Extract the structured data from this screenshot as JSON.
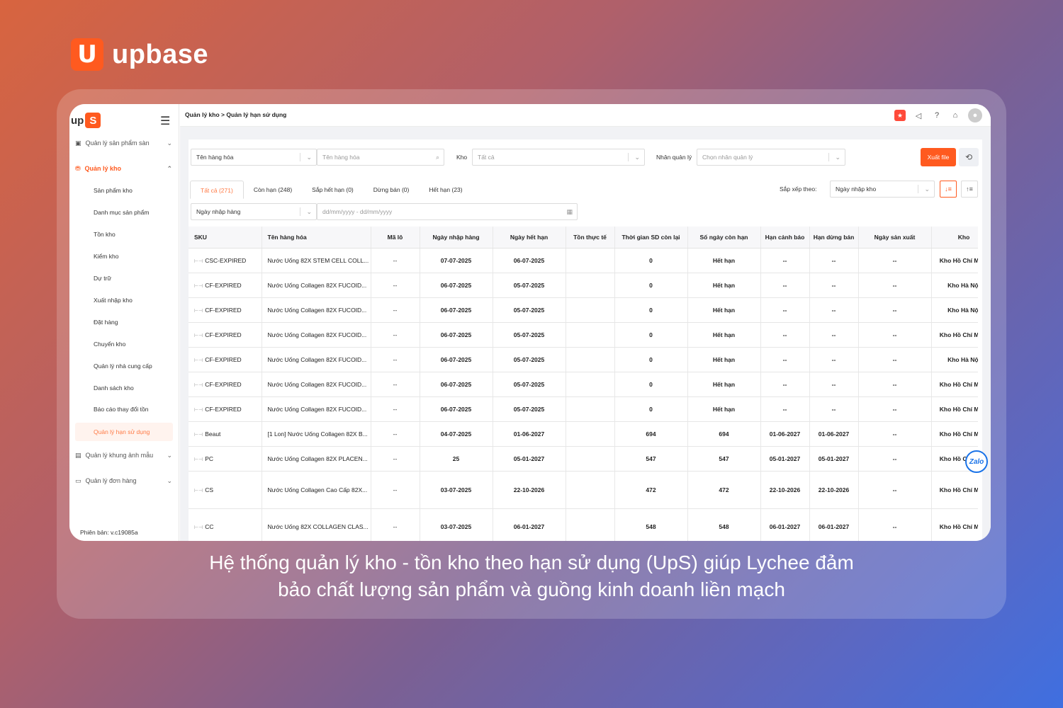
{
  "brand": {
    "mark": "U",
    "name": "upbase"
  },
  "caption": {
    "line1": "Hệ thống quản lý kho - tồn kho theo hạn sử dụng (UpS) giúp Lychee đảm",
    "line2": "bảo chất lượng sản phẩm và guồng kinh doanh liền mạch"
  },
  "sidebar": {
    "logo_text": "up",
    "logo_mark": "S",
    "groups": [
      {
        "label": "Quản lý sản phẩm sàn"
      },
      {
        "label": "Quản lý kho"
      },
      {
        "label": "Quản lý khung ảnh mẫu"
      },
      {
        "label": "Quản lý đơn hàng"
      }
    ],
    "items": [
      {
        "label": "Sản phẩm kho"
      },
      {
        "label": "Danh mục sản phẩm"
      },
      {
        "label": "Tồn kho"
      },
      {
        "label": "Kiểm kho"
      },
      {
        "label": "Dự trữ"
      },
      {
        "label": "Xuất nhập kho"
      },
      {
        "label": "Đặt hàng"
      },
      {
        "label": "Chuyển kho"
      },
      {
        "label": "Quản lý nhà cung cấp"
      },
      {
        "label": "Danh sách kho"
      },
      {
        "label": "Báo cáo thay đổi tồn"
      },
      {
        "label": "Quản lý hạn sử dụng"
      }
    ],
    "version": "Phiên bản: v.c19085a"
  },
  "topbar": {
    "breadcrumb": "Quản lý kho  >  Quản lý hạn sử dụng"
  },
  "filters": {
    "product_select": "Tên hàng hóa",
    "product_search_placeholder": "Tên hàng hóa",
    "warehouse_label": "Kho",
    "warehouse_value": "Tất cả",
    "staff_label": "Nhân quản lý",
    "staff_placeholder": "Chọn nhân quản lý",
    "export_label": "Xuất file",
    "date_type": "Ngày nhập hàng",
    "date_placeholder": "dd/mm/yyyy - dd/mm/yyyy",
    "sort_label": "Sắp xếp theo:",
    "sort_value": "Ngày nhập kho"
  },
  "tabs": [
    {
      "label": "Tất cả (271)"
    },
    {
      "label": "Còn hạn (248)"
    },
    {
      "label": "Sắp hết hạn (0)"
    },
    {
      "label": "Dừng bán (0)"
    },
    {
      "label": "Hết hạn (23)"
    }
  ],
  "table": {
    "columns": [
      "SKU",
      "Tên hàng hóa",
      "Mã lô",
      "Ngày nhập hàng",
      "Ngày hết hạn",
      "Tồn thực tế",
      "Thời gian SD còn lại",
      "Số ngày còn hạn",
      "Hạn cảnh báo",
      "Hạn dừng bán",
      "Ngày sản xuất",
      "Kho"
    ],
    "rows": [
      [
        "CSC-EXPIRED",
        "Nước Uống 82X STEM CELL COLL...",
        "--",
        "07-07-2025",
        "06-07-2025",
        "",
        "0",
        "Hết hạn",
        "--",
        "--",
        "--",
        "Kho Hồ Chí Minh"
      ],
      [
        "CF-EXPIRED",
        "Nước Uống Collagen 82X FUCOID...",
        "--",
        "06-07-2025",
        "05-07-2025",
        "",
        "0",
        "Hết hạn",
        "--",
        "--",
        "--",
        "Kho Hà Nội"
      ],
      [
        "CF-EXPIRED",
        "Nước Uống Collagen 82X FUCOID...",
        "--",
        "06-07-2025",
        "05-07-2025",
        "",
        "0",
        "Hết hạn",
        "--",
        "--",
        "--",
        "Kho Hà Nội"
      ],
      [
        "CF-EXPIRED",
        "Nước Uống Collagen 82X FUCOID...",
        "--",
        "06-07-2025",
        "05-07-2025",
        "",
        "0",
        "Hết hạn",
        "--",
        "--",
        "--",
        "Kho Hồ Chí Minh"
      ],
      [
        "CF-EXPIRED",
        "Nước Uống Collagen 82X FUCOID...",
        "--",
        "06-07-2025",
        "05-07-2025",
        "",
        "0",
        "Hết hạn",
        "--",
        "--",
        "--",
        "Kho Hà Nội"
      ],
      [
        "CF-EXPIRED",
        "Nước Uống Collagen 82X FUCOID...",
        "--",
        "06-07-2025",
        "05-07-2025",
        "",
        "0",
        "Hết hạn",
        "--",
        "--",
        "--",
        "Kho Hồ Chí Minh"
      ],
      [
        "CF-EXPIRED",
        "Nước Uống Collagen 82X FUCOID...",
        "--",
        "06-07-2025",
        "05-07-2025",
        "",
        "0",
        "Hết hạn",
        "--",
        "--",
        "--",
        "Kho Hồ Chí Minh"
      ],
      [
        "Beaut",
        "[1 Lon] Nước Uống Collagen 82X B...",
        "--",
        "04-07-2025",
        "01-06-2027",
        "",
        "694",
        "694",
        "01-06-2027",
        "01-06-2027",
        "--",
        "Kho Hồ Chí Minh"
      ],
      [
        "PC",
        "Nước Uống Collagen 82X PLACEN...",
        "--",
        "25",
        "05-01-2027",
        "",
        "547",
        "547",
        "05-01-2027",
        "05-01-2027",
        "--",
        "Kho Hồ Chí Minh"
      ],
      [
        "CS",
        "Nước Uống Collagen Cao Cấp 82X...",
        "--",
        "03-07-2025",
        "22-10-2026",
        "",
        "472",
        "472",
        "22-10-2026",
        "22-10-2026",
        "--",
        "Kho Hồ Chí Minh"
      ],
      [
        "CC",
        "Nước Uống 82X COLLAGEN CLAS...",
        "--",
        "03-07-2025",
        "06-01-2027",
        "",
        "548",
        "548",
        "06-01-2027",
        "06-01-2027",
        "--",
        "Kho Hồ Chí Minh"
      ]
    ]
  },
  "zalo_label": "Zalo"
}
